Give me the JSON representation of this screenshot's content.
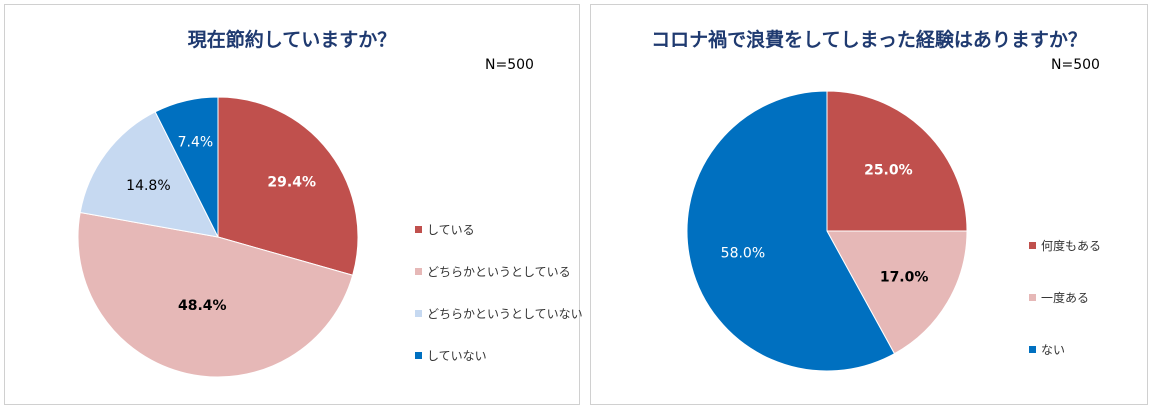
{
  "chart_data": [
    {
      "type": "pie",
      "title": "現在節約していますか？",
      "note": "N=500",
      "categories": [
        "している",
        "どちらかというとしている",
        "どちらかというとしていない",
        "していない"
      ],
      "values": [
        29.4,
        48.4,
        14.8,
        7.4
      ],
      "value_labels": [
        "29.4%",
        "48.4%",
        "14.8%",
        "7.4%"
      ],
      "colors": [
        "#c0504d",
        "#e6b8b7",
        "#c6d9f1",
        "#0070c0"
      ],
      "label_colors": [
        "#ffffff",
        "#000000",
        "#000000",
        "#ffffff"
      ],
      "label_bold": [
        true,
        true,
        false,
        false
      ],
      "legend_position": "right"
    },
    {
      "type": "pie",
      "title": "コロナ禍で浪費をしてしまった経験はありますか？",
      "note": "N=500",
      "categories": [
        "何度もある",
        "一度ある",
        "ない"
      ],
      "values": [
        25.0,
        17.0,
        58.0
      ],
      "value_labels": [
        "25.0%",
        "17.0%",
        "58.0%"
      ],
      "colors": [
        "#c0504d",
        "#e6b8b7",
        "#0070c0"
      ],
      "label_colors": [
        "#ffffff",
        "#000000",
        "#ffffff"
      ],
      "label_bold": [
        true,
        true,
        false
      ],
      "legend_position": "right"
    }
  ]
}
